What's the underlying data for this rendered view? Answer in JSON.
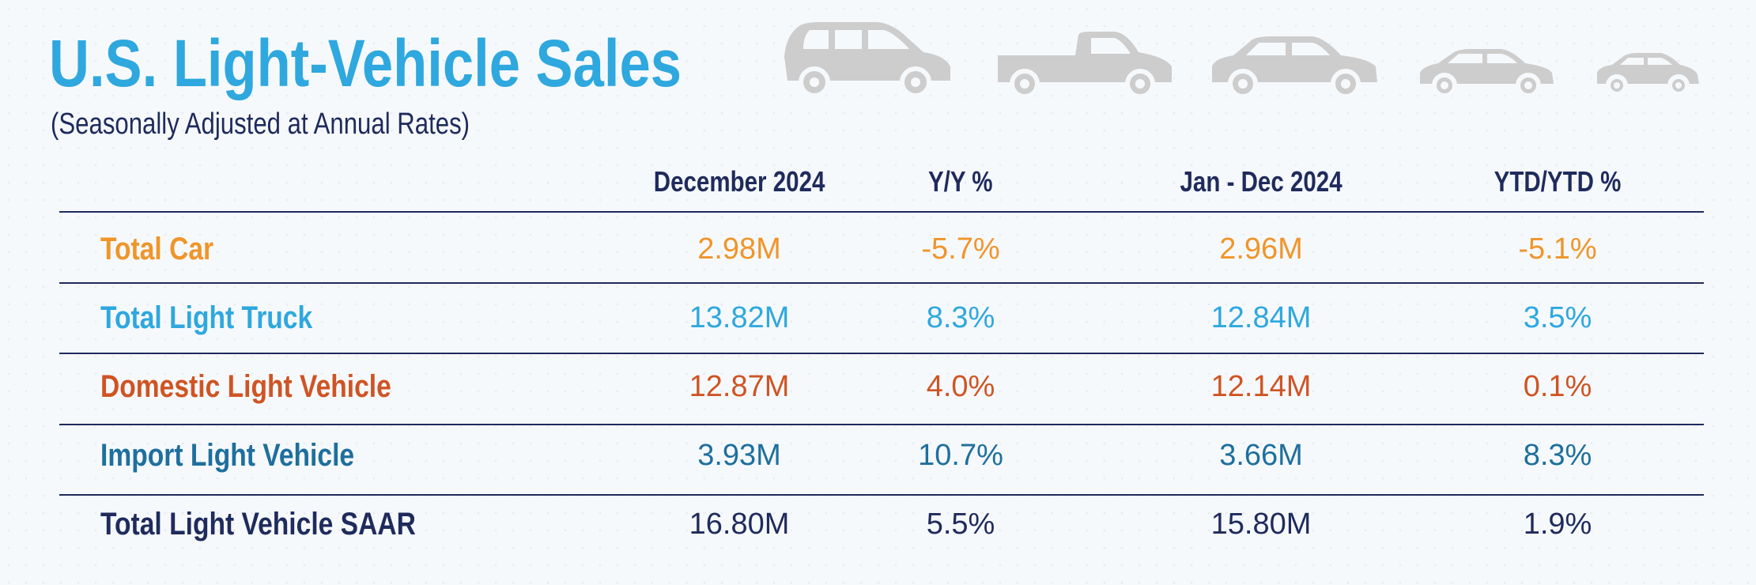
{
  "header": {
    "title": "U.S. Light-Vehicle Sales",
    "subtitle": "(Seasonally Adjusted at Annual Rates)"
  },
  "icons": [
    "minivan-icon",
    "pickup-truck-icon",
    "sedan-icon",
    "compact-car-icon",
    "small-hatchback-icon"
  ],
  "table": {
    "columns": [
      "December 2024",
      "Y/Y %",
      "Jan - Dec 2024",
      "YTD/YTD %"
    ],
    "rows": [
      {
        "label": "Total Car",
        "dec": "2.98M",
        "yy": "-5.7%",
        "ytd": "2.96M",
        "ytdpct": "-5.1%",
        "color": "#f0952a"
      },
      {
        "label": "Total Light Truck",
        "dec": "13.82M",
        "yy": "8.3%",
        "ytd": "12.84M",
        "ytdpct": "3.5%",
        "color": "#2ea8de"
      },
      {
        "label": "Domestic Light Vehicle",
        "dec": "12.87M",
        "yy": "4.0%",
        "ytd": "12.14M",
        "ytdpct": "0.1%",
        "color": "#cf5423"
      },
      {
        "label": "Import Light Vehicle",
        "dec": "3.93M",
        "yy": "10.7%",
        "ytd": "3.66M",
        "ytdpct": "8.3%",
        "color": "#1e6f9d"
      },
      {
        "label": "Total Light Vehicle SAAR",
        "dec": "16.80M",
        "yy": "5.5%",
        "ytd": "15.80M",
        "ytdpct": "1.9%",
        "color": "#1f2b5c"
      }
    ]
  },
  "colors": {
    "title": "#2ea8de",
    "header_text": "#1f2b5c",
    "car_icons": "#cdcdcd"
  }
}
